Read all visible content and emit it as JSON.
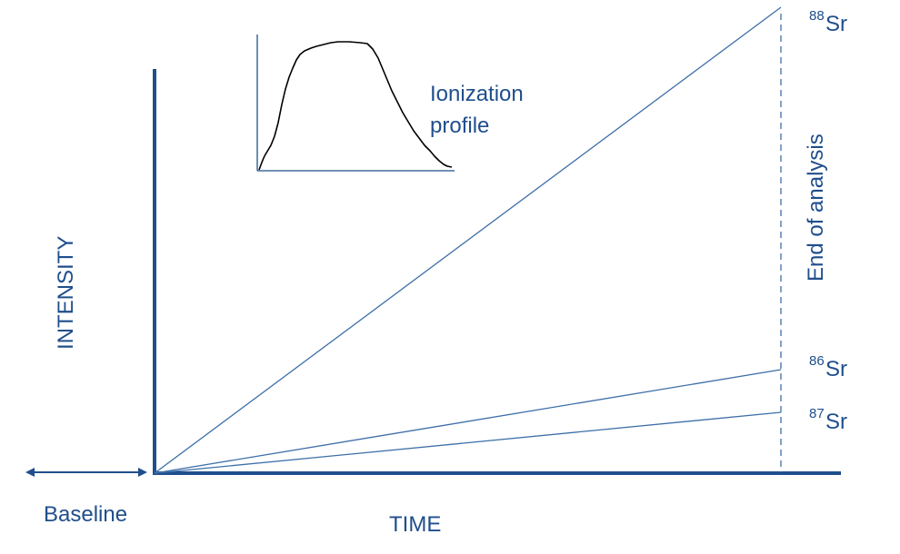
{
  "axes": {
    "x_label": "TIME",
    "y_label": "INTENSITY"
  },
  "baseline_label": "Baseline",
  "end_label": "End of analysis",
  "inset": {
    "label_line1": "Ionization",
    "label_line2": "profile"
  },
  "isotopes": [
    {
      "mass": "88",
      "symbol": "Sr"
    },
    {
      "mass": "86",
      "symbol": "Sr"
    },
    {
      "mass": "87",
      "symbol": "Sr"
    }
  ],
  "colors": {
    "axis": "#1f4e8c",
    "line": "#3d6fa8",
    "text": "#1f4e8c",
    "profile": "#000000"
  }
}
